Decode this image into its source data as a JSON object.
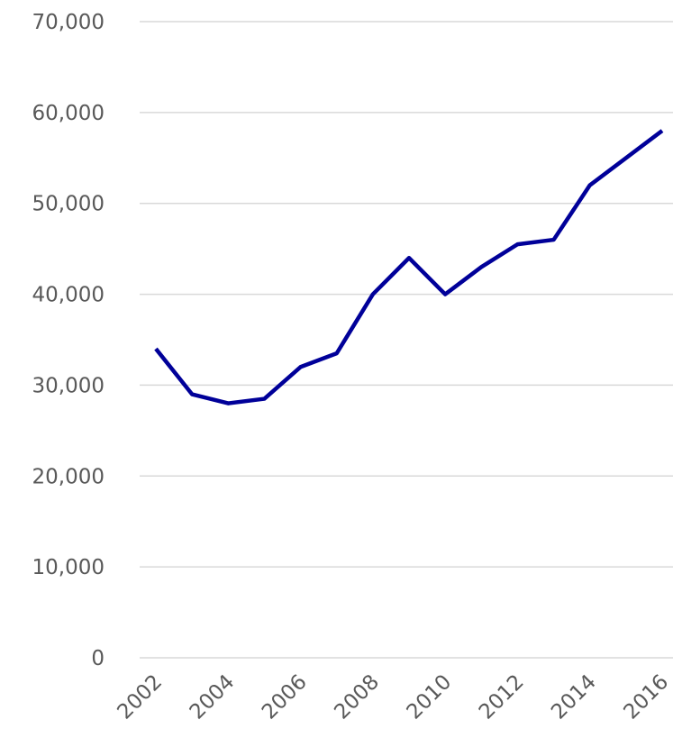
{
  "chart_data": {
    "type": "line",
    "x": [
      2002,
      2003,
      2004,
      2005,
      2006,
      2007,
      2008,
      2009,
      2010,
      2011,
      2012,
      2013,
      2014,
      2015,
      2016
    ],
    "series": [
      {
        "color": "#000099",
        "values": [
          34000,
          29000,
          28000,
          28500,
          32000,
          33500,
          40000,
          44000,
          40000,
          43000,
          45500,
          46000,
          52000,
          55000,
          58000
        ]
      }
    ],
    "xlim": [
      2002,
      2016
    ],
    "xticks": [
      2002,
      2004,
      2006,
      2008,
      2010,
      2012,
      2014,
      2016
    ],
    "ylim": [
      0,
      70000
    ],
    "yticks": [
      0,
      {
        "value": 10000,
        "label": "10,000"
      },
      {
        "value": 20000,
        "label": "20,000"
      },
      {
        "value": 30000,
        "label": "30,000"
      },
      {
        "value": 40000,
        "label": "40,000"
      },
      {
        "value": 50000,
        "label": "50,000"
      },
      {
        "value": 60000,
        "label": "60,000"
      },
      {
        "value": 70000,
        "label": "70,000"
      }
    ],
    "grid": true
  }
}
